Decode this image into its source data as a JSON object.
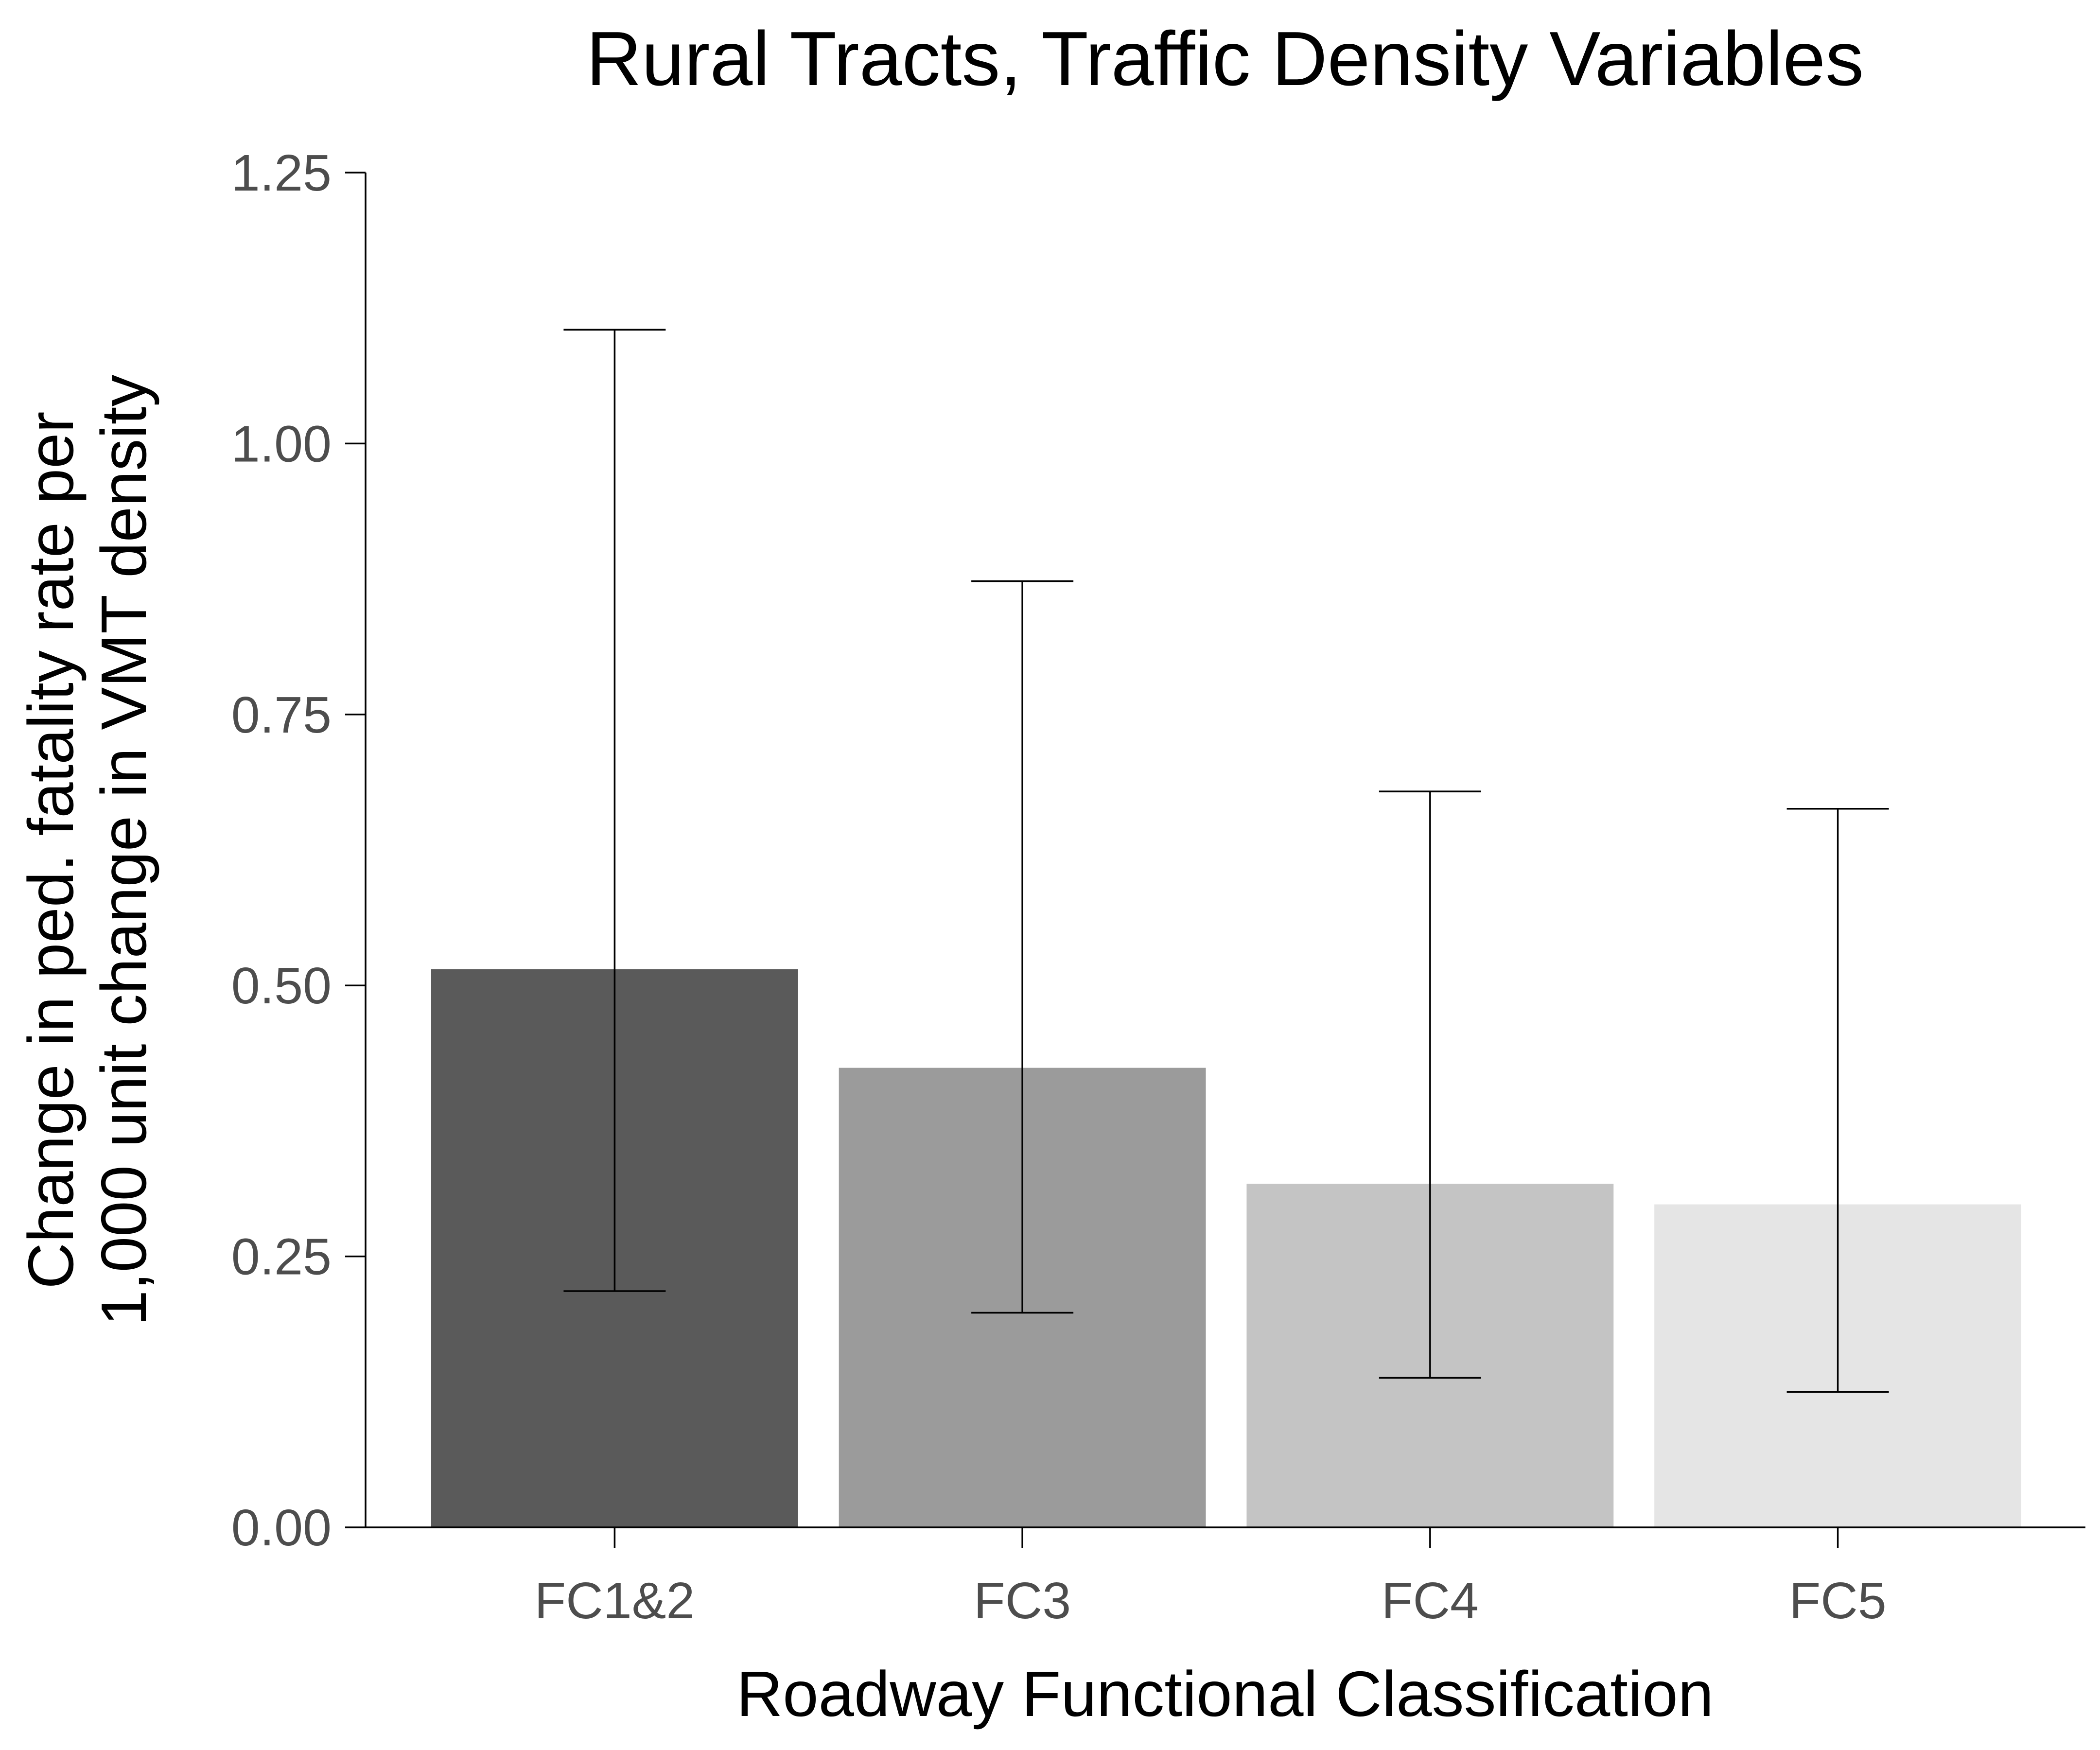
{
  "chart_data": {
    "type": "bar",
    "title": "Rural Tracts, Traffic Density Variables",
    "xlabel": "Roadway Functional Classification",
    "ylabel_lines": [
      "Change in ped. fatality rate per",
      "1,000 unit change in VMT density"
    ],
    "categories": [
      "FC1&2",
      "FC3",
      "FC4",
      "FC5"
    ],
    "values": [
      0.515,
      0.424,
      0.317,
      0.298
    ],
    "error_low": [
      0.218,
      0.198,
      0.138,
      0.125
    ],
    "error_high": [
      1.105,
      0.873,
      0.679,
      0.663
    ],
    "bar_colors": [
      "#5a5a5a",
      "#9b9b9b",
      "#c4c4c4",
      "#e5e5e5"
    ],
    "ylim": [
      0,
      1.25
    ],
    "yticks": [
      "0.00",
      "0.25",
      "0.50",
      "0.75",
      "1.00",
      "1.25"
    ],
    "grid": false,
    "legend": "none"
  }
}
